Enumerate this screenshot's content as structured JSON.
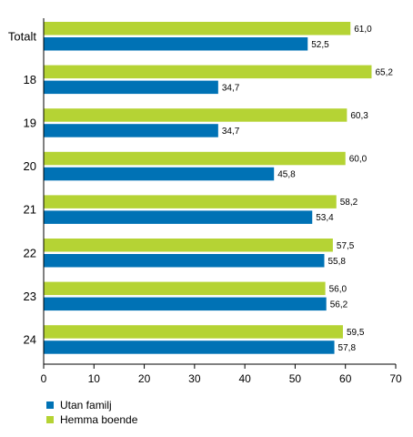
{
  "chart_data": {
    "type": "bar",
    "orientation": "horizontal",
    "categories": [
      "Totalt",
      "18",
      "19",
      "20",
      "21",
      "22",
      "23",
      "24"
    ],
    "series": [
      {
        "name": "Hemma boende",
        "color": "#b5d334",
        "values": [
          61.0,
          65.2,
          60.3,
          60.0,
          58.2,
          57.5,
          56.0,
          59.5
        ],
        "labels": [
          "61,0",
          "65,2",
          "60,3",
          "60,0",
          "58,2",
          "57,5",
          "56,0",
          "59,5"
        ]
      },
      {
        "name": "Utan familj",
        "color": "#0072b5",
        "values": [
          52.5,
          34.7,
          34.7,
          45.8,
          53.4,
          55.8,
          56.2,
          57.8
        ],
        "labels": [
          "52,5",
          "34,7",
          "34,7",
          "45,8",
          "53,4",
          "55,8",
          "56,2",
          "57,8"
        ]
      }
    ],
    "xlim": [
      0,
      70
    ],
    "xticks": [
      0,
      10,
      20,
      30,
      40,
      50,
      60,
      70
    ],
    "xtick_labels": [
      "0",
      "10",
      "20",
      "30",
      "40",
      "50",
      "60",
      "70"
    ],
    "grid": false,
    "legend": {
      "position": "bottom-left",
      "entries": [
        {
          "name": "Utan familj",
          "color": "#0072b5"
        },
        {
          "name": "Hemma boende",
          "color": "#b5d334"
        }
      ]
    }
  }
}
